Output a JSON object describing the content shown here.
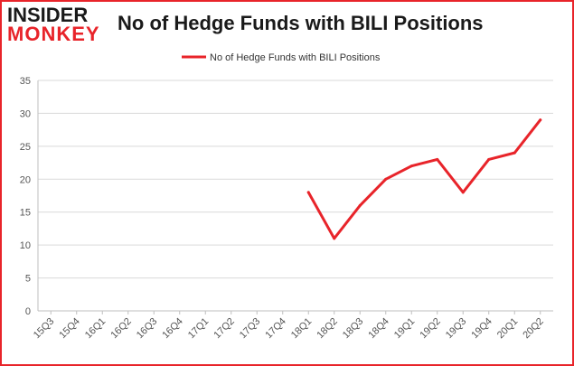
{
  "logo": {
    "line1": "INSIDER",
    "line2": "MONKEY"
  },
  "colors": {
    "accent": "#e8242a",
    "line": "#e8242a",
    "grid": "#d9d9d9",
    "axis_text": "#555555",
    "title": "#1a1a1a"
  },
  "chart_data": {
    "type": "line",
    "title": "No of Hedge Funds with BILI Positions",
    "xlabel": "",
    "ylabel": "",
    "ylim": [
      0,
      35
    ],
    "yticks": [
      0,
      5,
      10,
      15,
      20,
      25,
      30,
      35
    ],
    "grid": true,
    "legend": "top-center",
    "categories": [
      "15Q3",
      "15Q4",
      "16Q1",
      "16Q2",
      "16Q3",
      "16Q4",
      "17Q1",
      "17Q2",
      "17Q3",
      "17Q4",
      "18Q1",
      "18Q2",
      "18Q3",
      "18Q4",
      "19Q1",
      "19Q2",
      "19Q3",
      "19Q4",
      "20Q1",
      "20Q2"
    ],
    "series": [
      {
        "name": "No of Hedge Funds with BILI Positions",
        "values": [
          null,
          null,
          null,
          null,
          null,
          null,
          null,
          null,
          null,
          null,
          18,
          11,
          16,
          20,
          22,
          23,
          18,
          23,
          24,
          29
        ]
      }
    ]
  }
}
